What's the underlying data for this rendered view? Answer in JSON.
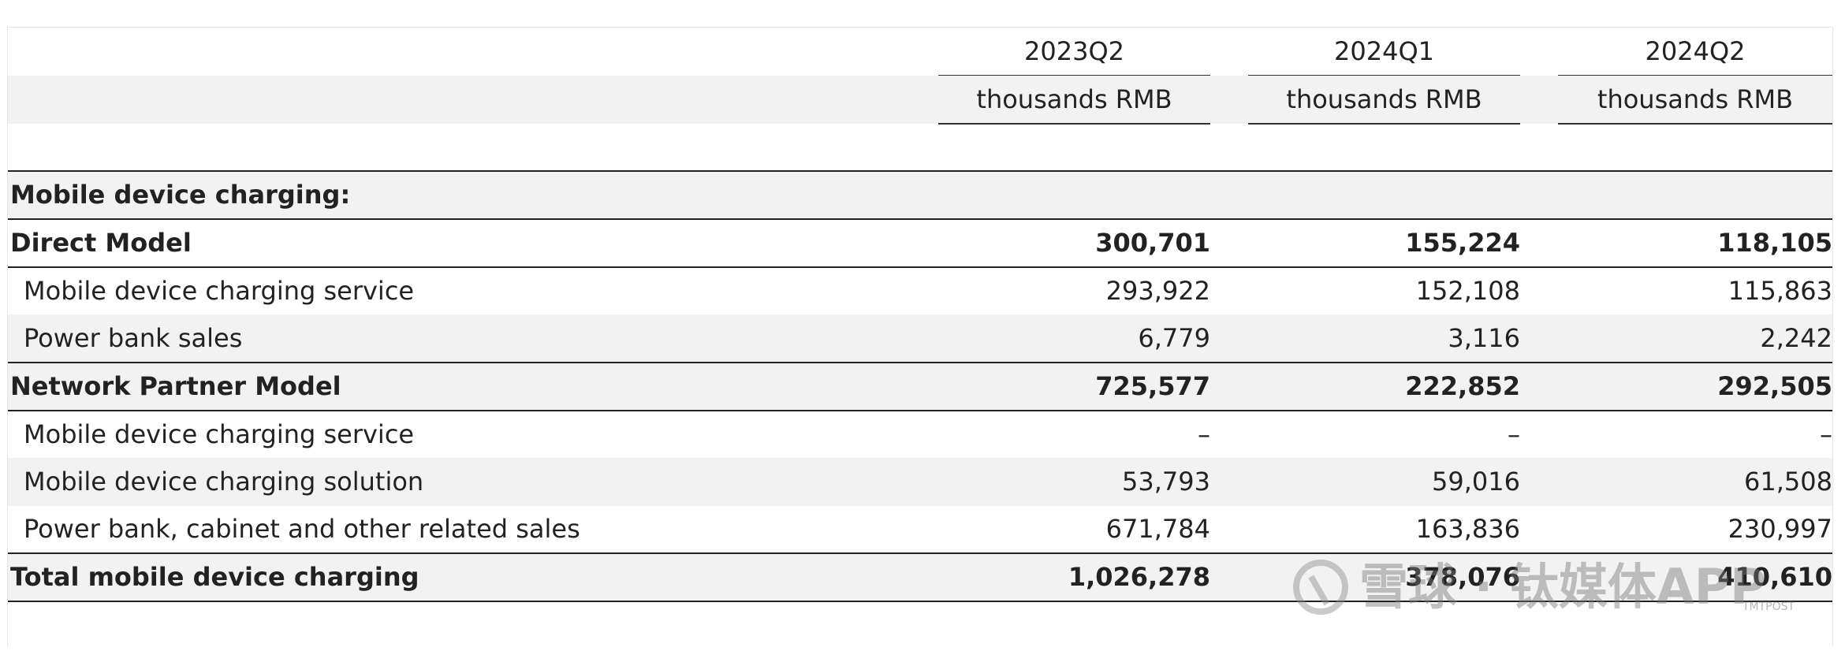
{
  "header": {
    "periods": [
      "2023Q2",
      "2024Q1",
      "2024Q2"
    ],
    "unit": "thousands RMB"
  },
  "section_title": "Mobile device charging:",
  "rows": [
    {
      "label": "Direct Model",
      "values": [
        "300,701",
        "155,224",
        "118,105"
      ]
    },
    {
      "label": "Mobile device charging service",
      "values": [
        "293,922",
        "152,108",
        "115,863"
      ]
    },
    {
      "label": "Power bank sales",
      "values": [
        "6,779",
        "3,116",
        "2,242"
      ]
    },
    {
      "label": "Network Partner Model",
      "values": [
        "725,577",
        "222,852",
        "292,505"
      ]
    },
    {
      "label": "Mobile device charging service",
      "values": [
        "–",
        "–",
        "–"
      ]
    },
    {
      "label": "Mobile device charging solution",
      "values": [
        "53,793",
        "59,016",
        "61,508"
      ]
    },
    {
      "label": "Power bank, cabinet and other related sales",
      "values": [
        "671,784",
        "163,836",
        "230,997"
      ]
    },
    {
      "label": "Total mobile device charging",
      "values": [
        "1,026,278",
        "378,076",
        "410,610"
      ]
    }
  ],
  "watermark": {
    "text": "雪球 · 钛媒体APP",
    "small": "TMTPOST"
  }
}
